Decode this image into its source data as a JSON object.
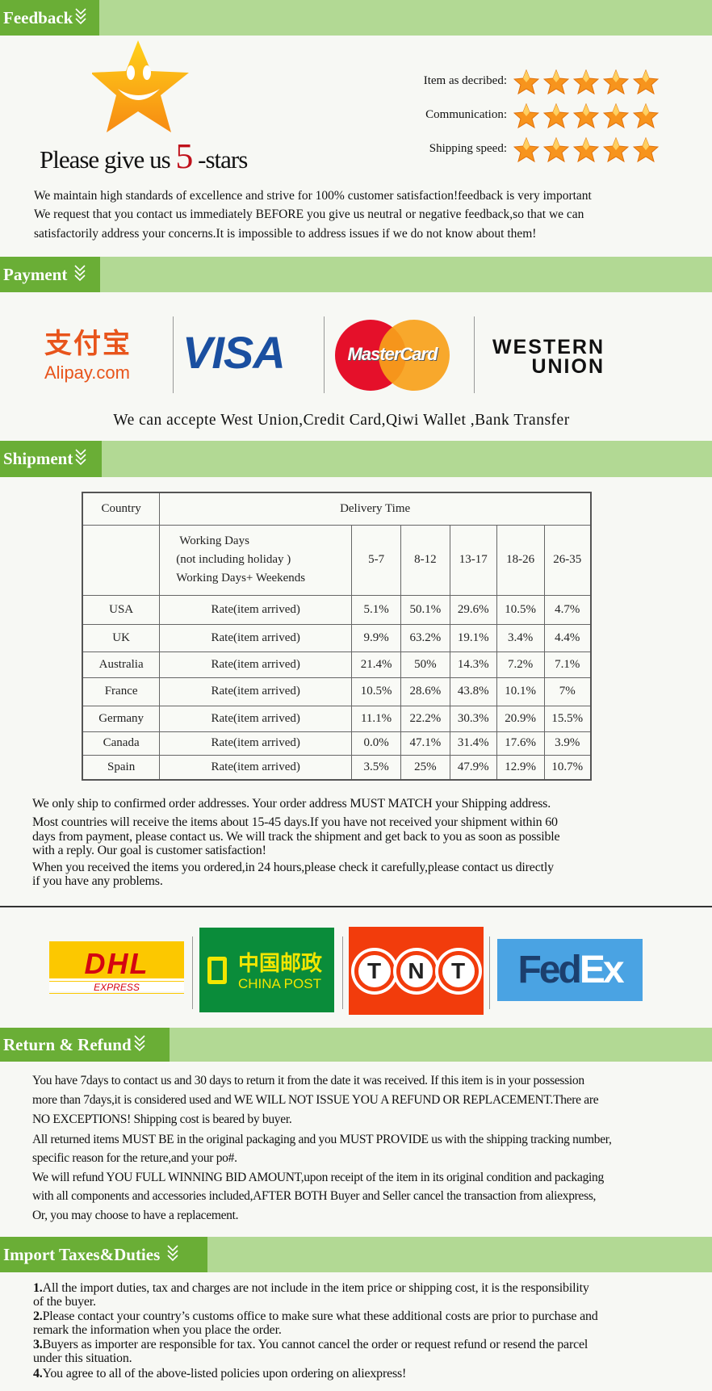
{
  "sections": {
    "feedback": "Feedback",
    "payment": "Payment",
    "shipment": "Shipment",
    "return": "Return & Refund",
    "import": "Import Taxes&Duties"
  },
  "feedback": {
    "headline_prefix": "Please give us",
    "headline_number": "5",
    "headline_suffix": "-stars",
    "ratings": [
      {
        "label": "Item as decribed:",
        "stars": 5
      },
      {
        "label": "Communication:",
        "stars": 5
      },
      {
        "label": "Shipping speed:",
        "stars": 5
      }
    ],
    "lines": [
      "We maintain high standards of excellence and strive for 100% customer satisfaction!feedback is very important",
      "We request that you contact us immediately BEFORE you give us neutral or negative feedback,so that we can",
      "satisfactorily address your concerns.It is impossible to address issues if we do not know about them!"
    ]
  },
  "payment": {
    "logos": {
      "alipay_cn": "支付宝",
      "alipay": "Alipay.com",
      "visa": "VISA",
      "mastercard": "MasterCard",
      "western1": "WESTERN",
      "western2": "UNION"
    },
    "note": "We can accepte West Union,Credit Card,Qiwi Wallet ,Bank Transfer"
  },
  "shipment": {
    "table": {
      "country_header": "Country",
      "delivery_header": "Delivery Time",
      "sub_lines": [
        "Working Days",
        "(not including holiday )",
        "Working Days+ Weekends"
      ],
      "ranges": [
        "5-7",
        "8-12",
        "13-17",
        "18-26",
        "26-35"
      ],
      "rows": [
        {
          "country": "USA",
          "label": "Rate(item arrived)",
          "values": [
            "5.1%",
            "50.1%",
            "29.6%",
            "10.5%",
            "4.7%"
          ]
        },
        {
          "country": "UK",
          "label": "Rate(item arrived)",
          "values": [
            "9.9%",
            "63.2%",
            "19.1%",
            "3.4%",
            "4.4%"
          ]
        },
        {
          "country": "Australia",
          "label": "Rate(item arrived)",
          "values": [
            "21.4%",
            "50%",
            "14.3%",
            "7.2%",
            "7.1%"
          ]
        },
        {
          "country": "France",
          "label": "Rate(item arrived)",
          "values": [
            "10.5%",
            "28.6%",
            "43.8%",
            "10.1%",
            "7%"
          ]
        },
        {
          "country": "Germany",
          "label": "Rate(item arrived)",
          "values": [
            "11.1%",
            "22.2%",
            "30.3%",
            "20.9%",
            "15.5%"
          ]
        },
        {
          "country": "Canada",
          "label": "Rate(item arrived)",
          "values": [
            "0.0%",
            "47.1%",
            "31.4%",
            "17.6%",
            "3.9%"
          ]
        },
        {
          "country": "Spain",
          "label": "Rate(item arrived)",
          "values": [
            "3.5%",
            "25%",
            "47.9%",
            "12.9%",
            "10.7%"
          ]
        }
      ]
    },
    "lines": [
      "We only ship to confirmed order addresses. Your order address MUST MATCH your Shipping address.",
      "Most countries will receive the items about 15-45 days.If you have not received your shipment within 60",
      "days from payment, please contact us. We will track the shipment and get back to you as soon as possible",
      "with a reply. Our goal is customer satisfaction!",
      "When you received the items you ordered,in 24 hours,please check it carefully,please contact us directly",
      "if you have any problems."
    ],
    "couriers": {
      "dhl": "DHL",
      "dhl_sub": "EXPRESS",
      "chinapost_cn": "中国邮政",
      "chinapost": "CHINA POST",
      "tnt": [
        "T",
        "N",
        "T"
      ],
      "fedex_a": "Fed",
      "fedex_b": "Ex"
    }
  },
  "return": {
    "lines": [
      "You have 7days to contact us and 30 days to return it from the date it was received. If this item is in your possession",
      "more than 7days,it is considered used and WE WILL NOT ISSUE YOU A REFUND OR REPLACEMENT.There are",
      " NO EXCEPTIONS! Shipping cost is beared by buyer.",
      "All returned items MUST BE in the original packaging and you MUST PROVIDE us with the shipping tracking number,",
      "specific reason for the reture,and your po#.",
      "We will refund YOU FULL WINNING BID AMOUNT,upon receipt of the item in its original condition and packaging",
      "with all components and accessories included,AFTER BOTH Buyer and Seller cancel the transaction from aliexpress,",
      "Or, you may choose to have a replacement."
    ]
  },
  "import": {
    "lines": [
      {
        "num": "1.",
        "text": "All the import duties, tax and charges are not include in the item price or shipping cost, it is the responsibility"
      },
      {
        "num": "",
        "text": "of the buyer."
      },
      {
        "num": "2.",
        "text": "Please contact your country’s customs office to make sure what these additional costs are prior to purchase and"
      },
      {
        "num": "",
        "text": "remark the information when you place the order."
      },
      {
        "num": "3.",
        "text": "Buyers as importer are responsible for tax. You cannot cancel the order or request refund or resend the parcel"
      },
      {
        "num": "",
        "text": "under this situation."
      },
      {
        "num": "4.",
        "text": "You agree to all of the above-listed policies upon ordering on aliexpress!"
      }
    ]
  },
  "colors": {
    "bar_light": "#b2d994",
    "bar_dark": "#6aae36",
    "star": "#f7941d",
    "accent_red": "#c0111b"
  }
}
